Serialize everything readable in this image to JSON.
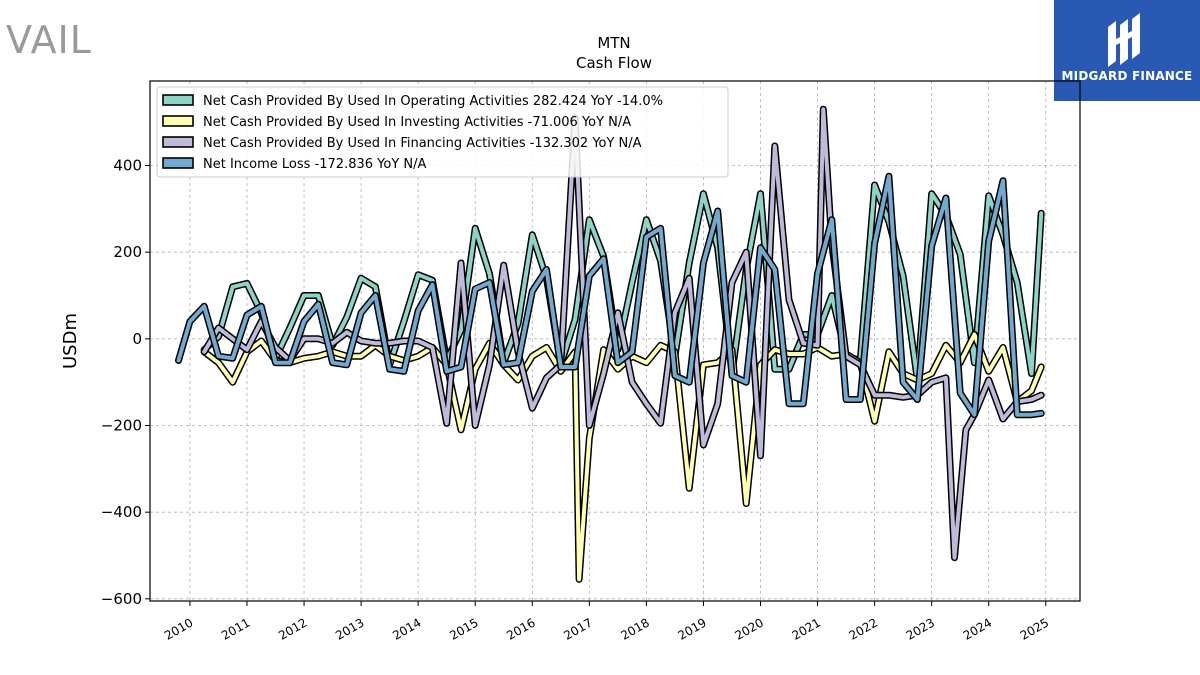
{
  "branding": {
    "left_logo_text": "VAIL",
    "right_logo_text": "MIDGARD FINANCE",
    "right_logo_color": "#2a59b4"
  },
  "chart_data": {
    "type": "line",
    "title": "MTN",
    "subtitle": "Cash Flow",
    "xlabel": "",
    "ylabel": "USDm",
    "xlim": [
      2009.3,
      2025.6
    ],
    "ylim": [
      -605,
      595
    ],
    "yticks": [
      -600,
      -400,
      -200,
      0,
      200,
      400
    ],
    "ytick_labels": [
      "−600",
      "−400",
      "−200",
      "0",
      "200",
      "400"
    ],
    "xticks": [
      2010,
      2011,
      2012,
      2013,
      2014,
      2015,
      2016,
      2017,
      2018,
      2019,
      2020,
      2021,
      2022,
      2023,
      2024,
      2025
    ],
    "xtick_labels": [
      "2010",
      "2011",
      "2012",
      "2013",
      "2014",
      "2015",
      "2016",
      "2017",
      "2018",
      "2019",
      "2020",
      "2021",
      "2022",
      "2023",
      "2024",
      "2025"
    ],
    "grid": true,
    "legend_position": "top-left",
    "series": [
      {
        "name": "Net Cash Provided By Used In Operating Activities",
        "legend_label": "Net Cash Provided By Used In Operating Activities  282.424 YoY -14.0%",
        "color": "#8dd3c7",
        "points": [
          [
            2010.25,
            -25
          ],
          [
            2010.5,
            5
          ],
          [
            2010.75,
            120
          ],
          [
            2011.0,
            128
          ],
          [
            2011.25,
            60
          ],
          [
            2011.5,
            -45
          ],
          [
            2011.75,
            25
          ],
          [
            2012.0,
            100
          ],
          [
            2012.25,
            100
          ],
          [
            2012.5,
            -15
          ],
          [
            2012.75,
            50
          ],
          [
            2013.0,
            140
          ],
          [
            2013.25,
            120
          ],
          [
            2013.5,
            -60
          ],
          [
            2013.75,
            40
          ],
          [
            2014.0,
            148
          ],
          [
            2014.25,
            135
          ],
          [
            2014.5,
            -50
          ],
          [
            2014.75,
            20
          ],
          [
            2015.0,
            255
          ],
          [
            2015.25,
            150
          ],
          [
            2015.5,
            -55
          ],
          [
            2015.75,
            35
          ],
          [
            2016.0,
            240
          ],
          [
            2016.25,
            140
          ],
          [
            2016.5,
            -60
          ],
          [
            2016.75,
            45
          ],
          [
            2017.0,
            275
          ],
          [
            2017.25,
            190
          ],
          [
            2017.5,
            -25
          ],
          [
            2017.75,
            130
          ],
          [
            2018.0,
            275
          ],
          [
            2018.25,
            180
          ],
          [
            2018.5,
            -40
          ],
          [
            2018.75,
            175
          ],
          [
            2019.0,
            335
          ],
          [
            2019.25,
            210
          ],
          [
            2019.5,
            -80
          ],
          [
            2019.75,
            160
          ],
          [
            2020.0,
            335
          ],
          [
            2020.25,
            -70
          ],
          [
            2020.5,
            -70
          ],
          [
            2020.75,
            10
          ],
          [
            2021.0,
            10
          ],
          [
            2021.25,
            100
          ],
          [
            2021.5,
            -40
          ],
          [
            2021.75,
            -50
          ],
          [
            2022.0,
            355
          ],
          [
            2022.25,
            270
          ],
          [
            2022.5,
            145
          ],
          [
            2022.75,
            -95
          ],
          [
            2023.0,
            335
          ],
          [
            2023.25,
            285
          ],
          [
            2023.5,
            195
          ],
          [
            2023.75,
            -55
          ],
          [
            2024.0,
            330
          ],
          [
            2024.25,
            240
          ],
          [
            2024.5,
            130
          ],
          [
            2024.75,
            -80
          ],
          [
            2024.92,
            290
          ]
        ]
      },
      {
        "name": "Net Cash Provided By Used In Investing Activities",
        "legend_label": "Net Cash Provided By Used In Investing Activities  -71.006 YoY N/A",
        "color": "#ffffb3",
        "points": [
          [
            2010.25,
            -30
          ],
          [
            2010.5,
            -55
          ],
          [
            2010.75,
            -100
          ],
          [
            2011.0,
            -30
          ],
          [
            2011.25,
            -5
          ],
          [
            2011.5,
            -50
          ],
          [
            2011.75,
            -55
          ],
          [
            2012.0,
            -45
          ],
          [
            2012.25,
            -40
          ],
          [
            2012.5,
            -30
          ],
          [
            2012.75,
            -40
          ],
          [
            2013.0,
            -40
          ],
          [
            2013.25,
            -15
          ],
          [
            2013.5,
            -40
          ],
          [
            2013.75,
            -50
          ],
          [
            2014.0,
            -40
          ],
          [
            2014.25,
            -20
          ],
          [
            2014.5,
            -60
          ],
          [
            2014.75,
            -210
          ],
          [
            2015.0,
            -70
          ],
          [
            2015.25,
            -10
          ],
          [
            2015.5,
            -60
          ],
          [
            2015.75,
            -95
          ],
          [
            2016.0,
            -40
          ],
          [
            2016.25,
            -20
          ],
          [
            2016.5,
            -75
          ],
          [
            2016.75,
            -30
          ],
          [
            2016.82,
            -555
          ],
          [
            2017.0,
            -230
          ],
          [
            2017.25,
            -25
          ],
          [
            2017.5,
            -70
          ],
          [
            2017.75,
            -40
          ],
          [
            2018.0,
            -55
          ],
          [
            2018.25,
            -15
          ],
          [
            2018.5,
            -30
          ],
          [
            2018.75,
            -345
          ],
          [
            2019.0,
            -60
          ],
          [
            2019.25,
            -55
          ],
          [
            2019.5,
            -25
          ],
          [
            2019.75,
            -380
          ],
          [
            2020.0,
            -60
          ],
          [
            2020.25,
            -25
          ],
          [
            2020.5,
            -35
          ],
          [
            2020.75,
            -35
          ],
          [
            2021.0,
            -20
          ],
          [
            2021.25,
            -40
          ],
          [
            2021.5,
            -35
          ],
          [
            2021.75,
            -55
          ],
          [
            2022.0,
            -190
          ],
          [
            2022.25,
            -30
          ],
          [
            2022.5,
            -80
          ],
          [
            2022.75,
            -95
          ],
          [
            2023.0,
            -80
          ],
          [
            2023.25,
            -15
          ],
          [
            2023.5,
            -55
          ],
          [
            2023.75,
            10
          ],
          [
            2024.0,
            -75
          ],
          [
            2024.25,
            -20
          ],
          [
            2024.5,
            -145
          ],
          [
            2024.75,
            -120
          ],
          [
            2024.92,
            -65
          ]
        ]
      },
      {
        "name": "Net Cash Provided By Used In Financing Activities",
        "legend_label": "Net Cash Provided By Used In Financing Activities  -132.302 YoY N/A",
        "color": "#bebada",
        "points": [
          [
            2010.25,
            -30
          ],
          [
            2010.5,
            25
          ],
          [
            2010.75,
            0
          ],
          [
            2011.0,
            -25
          ],
          [
            2011.25,
            40
          ],
          [
            2011.5,
            -20
          ],
          [
            2011.75,
            -50
          ],
          [
            2012.0,
            0
          ],
          [
            2012.25,
            0
          ],
          [
            2012.5,
            -10
          ],
          [
            2012.75,
            15
          ],
          [
            2013.0,
            -5
          ],
          [
            2013.25,
            -10
          ],
          [
            2013.5,
            -10
          ],
          [
            2013.75,
            -5
          ],
          [
            2014.0,
            -5
          ],
          [
            2014.25,
            -20
          ],
          [
            2014.5,
            -195
          ],
          [
            2014.75,
            175
          ],
          [
            2015.0,
            -200
          ],
          [
            2015.25,
            -60
          ],
          [
            2015.5,
            170
          ],
          [
            2015.75,
            -30
          ],
          [
            2016.0,
            -160
          ],
          [
            2016.25,
            -90
          ],
          [
            2016.5,
            -60
          ],
          [
            2016.75,
            510
          ],
          [
            2017.0,
            -200
          ],
          [
            2017.25,
            -80
          ],
          [
            2017.5,
            60
          ],
          [
            2017.75,
            -100
          ],
          [
            2018.0,
            -150
          ],
          [
            2018.25,
            -195
          ],
          [
            2018.5,
            60
          ],
          [
            2018.75,
            140
          ],
          [
            2019.0,
            -245
          ],
          [
            2019.25,
            -150
          ],
          [
            2019.5,
            130
          ],
          [
            2019.75,
            200
          ],
          [
            2020.0,
            -270
          ],
          [
            2020.25,
            445
          ],
          [
            2020.5,
            90
          ],
          [
            2020.75,
            -10
          ],
          [
            2021.0,
            -15
          ],
          [
            2021.1,
            530
          ],
          [
            2021.25,
            220
          ],
          [
            2021.5,
            -40
          ],
          [
            2021.75,
            -60
          ],
          [
            2022.0,
            -130
          ],
          [
            2022.25,
            -130
          ],
          [
            2022.5,
            -135
          ],
          [
            2022.75,
            -130
          ],
          [
            2023.0,
            -100
          ],
          [
            2023.25,
            -90
          ],
          [
            2023.4,
            -505
          ],
          [
            2023.6,
            -210
          ],
          [
            2023.75,
            -175
          ],
          [
            2024.0,
            -95
          ],
          [
            2024.25,
            -185
          ],
          [
            2024.5,
            -145
          ],
          [
            2024.75,
            -140
          ],
          [
            2024.92,
            -130
          ]
        ]
      },
      {
        "name": "Net Income Loss",
        "legend_label": "Net Income Loss  -172.836 YoY N/A",
        "color": "#72a9cf",
        "points": [
          [
            2009.8,
            -50
          ],
          [
            2010.0,
            40
          ],
          [
            2010.25,
            75
          ],
          [
            2010.5,
            -40
          ],
          [
            2010.75,
            -45
          ],
          [
            2011.0,
            55
          ],
          [
            2011.25,
            75
          ],
          [
            2011.5,
            -55
          ],
          [
            2011.75,
            -55
          ],
          [
            2012.0,
            40
          ],
          [
            2012.25,
            80
          ],
          [
            2012.5,
            -55
          ],
          [
            2012.75,
            -60
          ],
          [
            2013.0,
            60
          ],
          [
            2013.25,
            100
          ],
          [
            2013.5,
            -70
          ],
          [
            2013.75,
            -75
          ],
          [
            2014.0,
            65
          ],
          [
            2014.25,
            125
          ],
          [
            2014.5,
            -75
          ],
          [
            2014.75,
            -65
          ],
          [
            2015.0,
            115
          ],
          [
            2015.25,
            130
          ],
          [
            2015.5,
            -60
          ],
          [
            2015.75,
            -55
          ],
          [
            2016.0,
            110
          ],
          [
            2016.25,
            160
          ],
          [
            2016.5,
            -65
          ],
          [
            2016.75,
            -65
          ],
          [
            2017.0,
            145
          ],
          [
            2017.25,
            185
          ],
          [
            2017.5,
            -55
          ],
          [
            2017.75,
            -30
          ],
          [
            2018.0,
            235
          ],
          [
            2018.25,
            255
          ],
          [
            2018.5,
            -85
          ],
          [
            2018.75,
            -100
          ],
          [
            2019.0,
            175
          ],
          [
            2019.25,
            295
          ],
          [
            2019.5,
            -85
          ],
          [
            2019.75,
            -100
          ],
          [
            2020.0,
            210
          ],
          [
            2020.25,
            160
          ],
          [
            2020.5,
            -150
          ],
          [
            2020.75,
            -150
          ],
          [
            2021.0,
            150
          ],
          [
            2021.25,
            275
          ],
          [
            2021.5,
            -140
          ],
          [
            2021.75,
            -140
          ],
          [
            2022.0,
            220
          ],
          [
            2022.25,
            375
          ],
          [
            2022.5,
            -100
          ],
          [
            2022.75,
            -140
          ],
          [
            2023.0,
            215
          ],
          [
            2023.25,
            325
          ],
          [
            2023.5,
            -125
          ],
          [
            2023.75,
            -175
          ],
          [
            2024.0,
            225
          ],
          [
            2024.25,
            365
          ],
          [
            2024.5,
            -175
          ],
          [
            2024.75,
            -175
          ],
          [
            2024.92,
            -172
          ]
        ]
      }
    ]
  }
}
